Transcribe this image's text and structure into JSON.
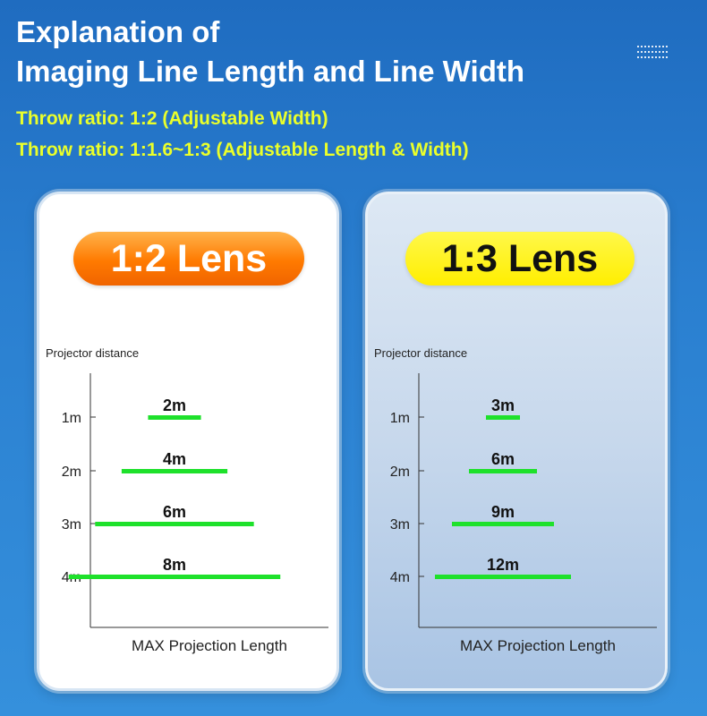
{
  "header": {
    "title_line1": "Explanation of",
    "title_line2": "Imaging Line Length and Line Width",
    "throw_line1": "Throw ratio: 1:2 (Adjustable Width)",
    "throw_line2": "Throw ratio: 1:1.6~1:3 (Adjustable Length & Width)",
    "dots_icon": "grid-dots-icon"
  },
  "colors": {
    "background": "#2a7fd0",
    "title": "#ffffff",
    "throw_text": "#eaff2a",
    "bar": "#1ee12b",
    "pill_orange": "#ff7a00",
    "pill_yellow": "#ffee00"
  },
  "chart_data": [
    {
      "type": "bar",
      "orientation": "horizontal",
      "title": "1:2 Lens",
      "ylabel": "Projector distance",
      "xlabel": "MAX Projection Length",
      "categories": [
        "1m",
        "2m",
        "3m",
        "4m"
      ],
      "values": [
        2,
        4,
        6,
        8
      ],
      "value_labels": [
        "2m",
        "4m",
        "6m",
        "8m"
      ],
      "xlim": [
        0,
        9
      ]
    },
    {
      "type": "bar",
      "orientation": "horizontal",
      "title": "1:3 Lens",
      "ylabel": "Projector distance",
      "xlabel": "MAX Projection Length",
      "categories": [
        "1m",
        "2m",
        "3m",
        "4m"
      ],
      "values": [
        3,
        6,
        9,
        12
      ],
      "value_labels": [
        "3m",
        "6m",
        "9m",
        "12m"
      ],
      "xlim": [
        0,
        21
      ]
    }
  ]
}
